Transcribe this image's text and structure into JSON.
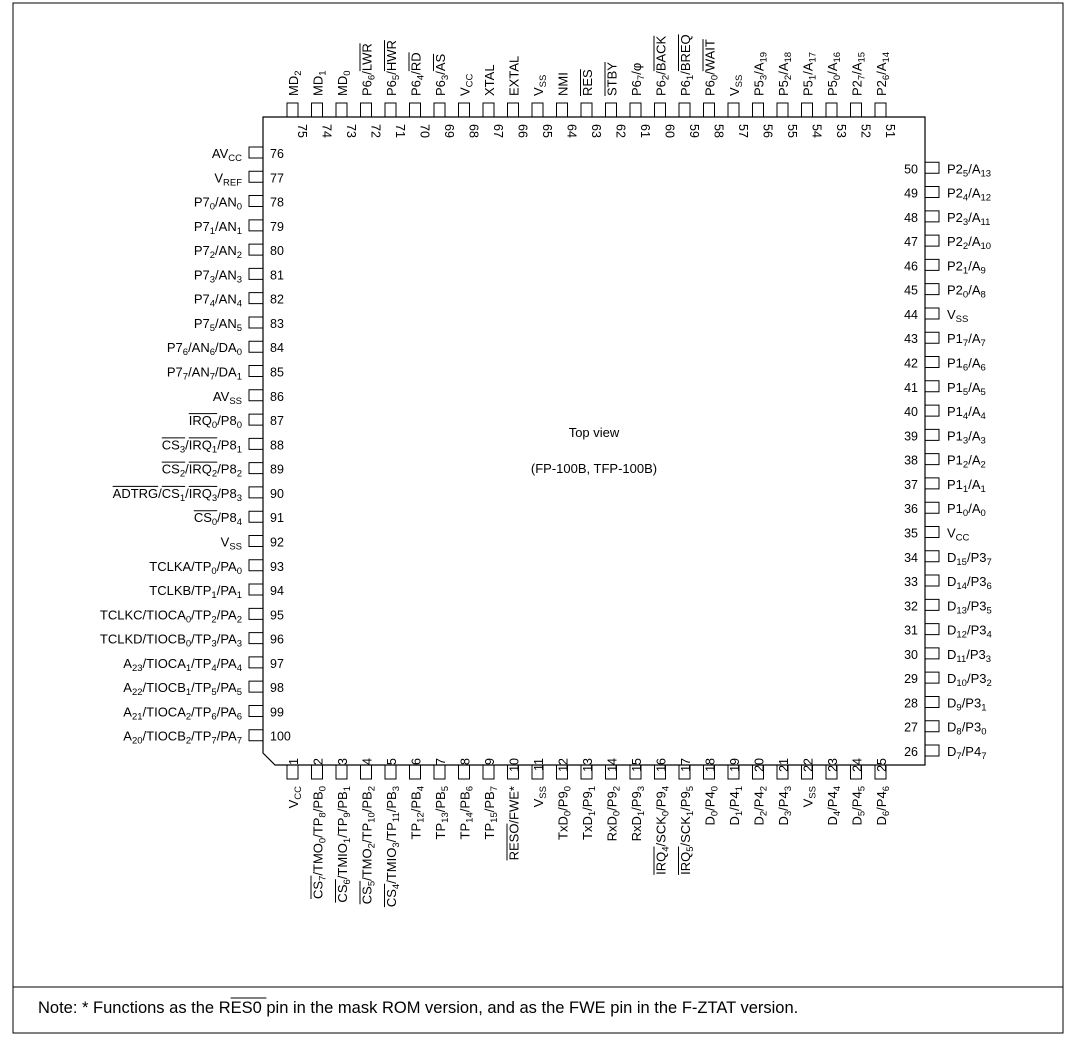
{
  "title": "",
  "chip": {
    "view_label": "Top view",
    "package_label": "(FP-100B, TFP-100B)"
  },
  "note": {
    "prefix": "Note:  * Functions as the ",
    "over": "RES0",
    "suffix": " pin in the mask ROM version, and as the FWE pin in the F-ZTAT version."
  },
  "pins": {
    "bottom": [
      {
        "n": 1,
        "label": "V_{CC}"
      },
      {
        "n": 2,
        "label": "~{CS_{7}}/TMO_{0}/TP_{8}/PB_{0}"
      },
      {
        "n": 3,
        "label": "~{CS_{6}}/TMIO_{1}/TP_{9}/PB_{1}"
      },
      {
        "n": 4,
        "label": "~{CS_{5}}/TMO_{2}/TP_{10}/PB_{2}"
      },
      {
        "n": 5,
        "label": "~{CS_{4}}/TMIO_{3}/TP_{11}/PB_{3}"
      },
      {
        "n": 6,
        "label": "TP_{12}/PB_{4}"
      },
      {
        "n": 7,
        "label": "TP_{13}/PB_{5}"
      },
      {
        "n": 8,
        "label": "TP_{14}/PB_{6}"
      },
      {
        "n": 9,
        "label": "TP_{15}/PB_{7}"
      },
      {
        "n": 10,
        "label": "~{RESO}/FWE*"
      },
      {
        "n": 11,
        "label": "V_{SS}"
      },
      {
        "n": 12,
        "label": "TxD_{0}/P9_{0}"
      },
      {
        "n": 13,
        "label": "TxD_{1}/P9_{1}"
      },
      {
        "n": 14,
        "label": "RxD_{0}/P9_{2}"
      },
      {
        "n": 15,
        "label": "RxD_{1}/P9_{3}"
      },
      {
        "n": 16,
        "label": "~{IRQ_{4}}/SCK_{0}/P9_{4}"
      },
      {
        "n": 17,
        "label": "~{IRQ_{5}}/SCK_{1}/P9_{5}"
      },
      {
        "n": 18,
        "label": "D_{0}/P4_{0}"
      },
      {
        "n": 19,
        "label": "D_{1}/P4_{1}"
      },
      {
        "n": 20,
        "label": "D_{2}/P4_{2}"
      },
      {
        "n": 21,
        "label": "D_{3}/P4_{3}"
      },
      {
        "n": 22,
        "label": "V_{SS}"
      },
      {
        "n": 23,
        "label": "D_{4}/P4_{4}"
      },
      {
        "n": 24,
        "label": "D_{5}/P4_{5}"
      },
      {
        "n": 25,
        "label": "D_{6}/P4_{6}"
      }
    ],
    "right": [
      {
        "n": 26,
        "label": "D_{7}/P4_{7}"
      },
      {
        "n": 27,
        "label": "D_{8}/P3_{0}"
      },
      {
        "n": 28,
        "label": "D_{9}/P3_{1}"
      },
      {
        "n": 29,
        "label": "D_{10}/P3_{2}"
      },
      {
        "n": 30,
        "label": "D_{11}/P3_{3}"
      },
      {
        "n": 31,
        "label": "D_{12}/P3_{4}"
      },
      {
        "n": 32,
        "label": "D_{13}/P3_{5}"
      },
      {
        "n": 33,
        "label": "D_{14}/P3_{6}"
      },
      {
        "n": 34,
        "label": "D_{15}/P3_{7}"
      },
      {
        "n": 35,
        "label": "V_{CC}"
      },
      {
        "n": 36,
        "label": "P1_{0}/A_{0}"
      },
      {
        "n": 37,
        "label": "P1_{1}/A_{1}"
      },
      {
        "n": 38,
        "label": "P1_{2}/A_{2}"
      },
      {
        "n": 39,
        "label": "P1_{3}/A_{3}"
      },
      {
        "n": 40,
        "label": "P1_{4}/A_{4}"
      },
      {
        "n": 41,
        "label": "P1_{5}/A_{5}"
      },
      {
        "n": 42,
        "label": "P1_{6}/A_{6}"
      },
      {
        "n": 43,
        "label": "P1_{7}/A_{7}"
      },
      {
        "n": 44,
        "label": "V_{SS}"
      },
      {
        "n": 45,
        "label": "P2_{0}/A_{8}"
      },
      {
        "n": 46,
        "label": "P2_{1}/A_{9}"
      },
      {
        "n": 47,
        "label": "P2_{2}/A_{10}"
      },
      {
        "n": 48,
        "label": "P2_{3}/A_{11}"
      },
      {
        "n": 49,
        "label": "P2_{4}/A_{12}"
      },
      {
        "n": 50,
        "label": "P2_{5}/A_{13}"
      }
    ],
    "top": [
      {
        "n": 51,
        "label": "P2_{6}/A_{14}"
      },
      {
        "n": 52,
        "label": "P2_{7}/A_{15}"
      },
      {
        "n": 53,
        "label": "P5_{0}/A_{16}"
      },
      {
        "n": 54,
        "label": "P5_{1}/A_{17}"
      },
      {
        "n": 55,
        "label": "P5_{2}/A_{18}"
      },
      {
        "n": 56,
        "label": "P5_{3}/A_{19}"
      },
      {
        "n": 57,
        "label": "V_{SS}"
      },
      {
        "n": 58,
        "label": "P6_{0}/~{WAIT}"
      },
      {
        "n": 59,
        "label": "P6_{1}/~{BREQ}"
      },
      {
        "n": 60,
        "label": "P6_{2}/~{BACK}"
      },
      {
        "n": 61,
        "label": "P6_{7}/φ"
      },
      {
        "n": 62,
        "label": "~{STBY}"
      },
      {
        "n": 63,
        "label": "~{RES}"
      },
      {
        "n": 64,
        "label": "NMI"
      },
      {
        "n": 65,
        "label": "V_{SS}"
      },
      {
        "n": 66,
        "label": "EXTAL"
      },
      {
        "n": 67,
        "label": "XTAL"
      },
      {
        "n": 68,
        "label": "V_{CC}"
      },
      {
        "n": 69,
        "label": "P6_{3}/~{AS}"
      },
      {
        "n": 70,
        "label": "P6_{4}/~{RD}"
      },
      {
        "n": 71,
        "label": "P6_{5}/~{HWR}"
      },
      {
        "n": 72,
        "label": "P6_{6}/~{LWR}"
      },
      {
        "n": 73,
        "label": "MD_{0}"
      },
      {
        "n": 74,
        "label": "MD_{1}"
      },
      {
        "n": 75,
        "label": "MD_{2}"
      }
    ],
    "left": [
      {
        "n": 76,
        "label": "AV_{CC}"
      },
      {
        "n": 77,
        "label": "V_{REF}"
      },
      {
        "n": 78,
        "label": "P7_{0}/AN_{0}"
      },
      {
        "n": 79,
        "label": "P7_{1}/AN_{1}"
      },
      {
        "n": 80,
        "label": "P7_{2}/AN_{2}"
      },
      {
        "n": 81,
        "label": "P7_{3}/AN_{3}"
      },
      {
        "n": 82,
        "label": "P7_{4}/AN_{4}"
      },
      {
        "n": 83,
        "label": "P7_{5}/AN_{5}"
      },
      {
        "n": 84,
        "label": "P7_{6}/AN_{6}/DA_{0}"
      },
      {
        "n": 85,
        "label": "P7_{7}/AN_{7}/DA_{1}"
      },
      {
        "n": 86,
        "label": "AV_{SS}"
      },
      {
        "n": 87,
        "label": "~{IRQ_{0}}/P8_{0}"
      },
      {
        "n": 88,
        "label": "~{CS_{3}}/~{IRQ_{1}}/P8_{1}"
      },
      {
        "n": 89,
        "label": "~{CS_{2}}/~{IRQ_{2}}/P8_{2}"
      },
      {
        "n": 90,
        "label": "~{ADTRG}/~{CS_{1}}/~{IRQ_{3}}/P8_{3}"
      },
      {
        "n": 91,
        "label": "~{CS_{0}}/P8_{4}"
      },
      {
        "n": 92,
        "label": "V_{SS}"
      },
      {
        "n": 93,
        "label": "TCLKA/TP_{0}/PA_{0}"
      },
      {
        "n": 94,
        "label": "TCLKB/TP_{1}/PA_{1}"
      },
      {
        "n": 95,
        "label": "TCLKC/TIOCA_{0}/TP_{2}/PA_{2}"
      },
      {
        "n": 96,
        "label": "TCLKD/TIOCB_{0}/TP_{3}/PA_{3}"
      },
      {
        "n": 97,
        "label": "A_{23}/TIOCA_{1}/TP_{4}/PA_{4}"
      },
      {
        "n": 98,
        "label": "A_{22}/TIOCB_{1}/TP_{5}/PA_{5}"
      },
      {
        "n": 99,
        "label": "A_{21}/TIOCA_{2}/TP_{6}/PA_{6}"
      },
      {
        "n": 100,
        "label": "A_{20}/TIOCB_{2}/TP_{7}/PA_{7}"
      }
    ]
  }
}
